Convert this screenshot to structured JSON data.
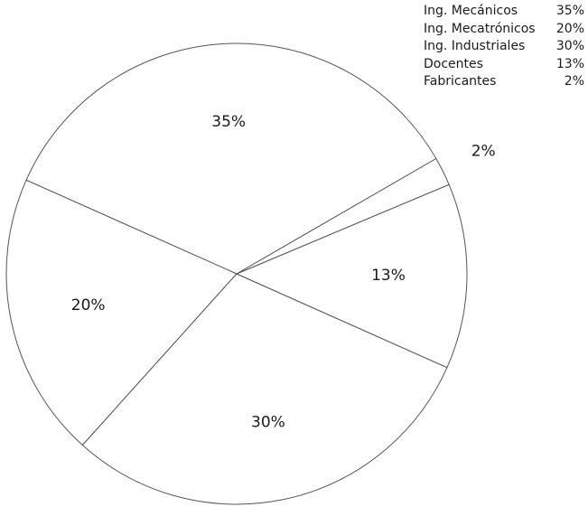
{
  "chart_data": {
    "type": "pie",
    "title": "",
    "slices": [
      {
        "label": "Ing. Mecánicos",
        "value": 35,
        "value_label": "35%"
      },
      {
        "label": "Ing. Mecatrónicos",
        "value": 20,
        "value_label": "20%"
      },
      {
        "label": "Ing. Industriales",
        "value": 30,
        "value_label": "30%"
      },
      {
        "label": "Docentes",
        "value": 13,
        "value_label": "13%"
      },
      {
        "label": "Fabricantes",
        "value": 2,
        "value_label": "2%"
      }
    ],
    "legend_position": "top-right",
    "start_angle_deg": 30,
    "direction": "counterclockwise",
    "colors": {
      "stroke": "#555555",
      "fill": "#ffffff",
      "text": "#1a1a1a"
    }
  }
}
